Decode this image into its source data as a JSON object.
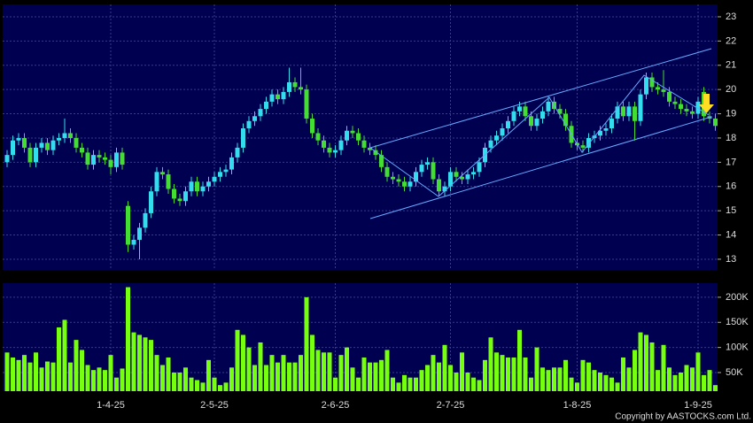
{
  "chart_data": {
    "type": "candlestick",
    "categories": [
      null,
      null,
      null,
      null,
      null,
      null,
      null,
      null,
      null,
      null,
      null,
      null,
      null,
      null,
      null,
      null,
      null,
      null,
      "1-4-25",
      null,
      null,
      null,
      null,
      null,
      null,
      null,
      null,
      null,
      null,
      null,
      null,
      null,
      null,
      null,
      null,
      null,
      "2-5-25",
      null,
      null,
      null,
      null,
      null,
      null,
      null,
      null,
      null,
      null,
      null,
      null,
      null,
      null,
      null,
      null,
      null,
      null,
      null,
      null,
      "2-6-25",
      null,
      null,
      null,
      null,
      null,
      null,
      null,
      null,
      null,
      null,
      null,
      null,
      null,
      null,
      null,
      null,
      null,
      null,
      null,
      "2-7-25",
      null,
      null,
      null,
      null,
      null,
      null,
      null,
      null,
      null,
      null,
      null,
      null,
      null,
      null,
      null,
      null,
      null,
      null,
      null,
      null,
      null,
      "1-8-25",
      null,
      null,
      null,
      null,
      null,
      null,
      null,
      null,
      null,
      null,
      null,
      null,
      null,
      null,
      null,
      null,
      null,
      null,
      null,
      null,
      "1-9-25",
      null,
      null,
      null
    ],
    "open": [
      17.0,
      17.3,
      17.9,
      18.0,
      17.6,
      17.0,
      17.6,
      17.8,
      17.5,
      17.9,
      18.0,
      18.2,
      18.0,
      17.6,
      17.4,
      16.9,
      17.3,
      17.2,
      17.1,
      16.8,
      17.4,
      15.2,
      13.6,
      13.8,
      14.3,
      14.9,
      15.8,
      16.6,
      16.5,
      15.9,
      15.5,
      15.4,
      15.8,
      16.2,
      15.8,
      16.0,
      16.2,
      16.4,
      16.6,
      16.7,
      17.2,
      17.6,
      18.4,
      18.7,
      18.9,
      19.2,
      19.5,
      19.8,
      19.6,
      19.9,
      20.3,
      20.1,
      20.0,
      18.8,
      18.2,
      17.9,
      17.6,
      17.4,
      17.5,
      17.9,
      18.3,
      18.2,
      17.9,
      17.6,
      17.5,
      17.3,
      16.8,
      16.4,
      16.3,
      16.2,
      16.0,
      16.2,
      16.6,
      16.9,
      17.0,
      16.3,
      15.8,
      16.0,
      16.6,
      16.4,
      16.3,
      16.5,
      16.6,
      17.0,
      17.6,
      17.9,
      18.1,
      18.4,
      18.7,
      19.1,
      19.3,
      18.9,
      18.5,
      18.8,
      19.1,
      19.5,
      19.2,
      19.0,
      18.5,
      17.8,
      17.7,
      17.6,
      18.0,
      18.1,
      18.3,
      18.4,
      18.8,
      19.3,
      18.9,
      19.3,
      18.7,
      19.8,
      20.5,
      20.1,
      20.0,
      19.9,
      19.5,
      19.4,
      19.2,
      19.1,
      19.0,
      19.9,
      18.9,
      18.8
    ],
    "high": [
      17.5,
      18.1,
      18.2,
      18.2,
      17.8,
      17.8,
      18.0,
      18.0,
      18.1,
      18.2,
      18.8,
      18.4,
      18.2,
      17.8,
      17.6,
      17.5,
      17.5,
      17.4,
      17.3,
      17.6,
      17.6,
      15.4,
      14.0,
      14.5,
      15.1,
      16.0,
      16.8,
      16.8,
      16.7,
      16.1,
      15.7,
      16.0,
      16.4,
      16.4,
      16.2,
      16.4,
      16.6,
      16.8,
      16.9,
      17.4,
      17.8,
      18.6,
      18.9,
      19.1,
      19.4,
      19.7,
      20.0,
      20.0,
      20.1,
      20.9,
      20.5,
      20.9,
      20.2,
      19.0,
      18.4,
      18.1,
      17.8,
      17.7,
      18.1,
      18.5,
      18.5,
      18.4,
      18.1,
      17.8,
      17.7,
      17.5,
      17.0,
      16.6,
      16.5,
      16.4,
      16.4,
      16.8,
      17.1,
      17.2,
      17.2,
      16.5,
      16.2,
      16.8,
      16.8,
      16.6,
      16.7,
      16.8,
      17.2,
      17.8,
      18.1,
      18.3,
      18.6,
      18.9,
      19.3,
      19.5,
      19.5,
      19.1,
      19.0,
      19.3,
      19.7,
      19.7,
      19.4,
      19.2,
      18.7,
      18.0,
      17.9,
      18.2,
      18.3,
      18.5,
      18.6,
      19.0,
      19.5,
      19.5,
      19.5,
      19.5,
      20.0,
      20.7,
      20.7,
      20.3,
      20.8,
      20.1,
      19.7,
      19.6,
      19.4,
      19.3,
      19.7,
      20.1,
      19.1,
      19.0
    ],
    "low": [
      16.8,
      17.1,
      17.7,
      17.4,
      16.8,
      16.8,
      17.4,
      17.3,
      17.3,
      17.7,
      17.8,
      17.8,
      17.4,
      17.2,
      16.7,
      16.7,
      17.0,
      16.9,
      16.5,
      16.6,
      16.7,
      13.3,
      13.4,
      13.0,
      14.1,
      14.7,
      15.6,
      16.3,
      15.7,
      15.3,
      15.2,
      15.2,
      15.6,
      15.6,
      15.6,
      15.8,
      16.0,
      16.2,
      16.4,
      16.5,
      17.0,
      17.4,
      18.2,
      18.5,
      18.7,
      19.0,
      19.3,
      19.4,
      19.4,
      19.7,
      19.9,
      19.8,
      18.6,
      18.0,
      17.7,
      17.4,
      17.2,
      17.2,
      17.3,
      17.7,
      18.0,
      17.7,
      17.4,
      17.3,
      17.1,
      16.6,
      16.2,
      16.1,
      16.0,
      15.8,
      15.8,
      16.0,
      16.4,
      16.7,
      16.1,
      15.6,
      15.6,
      15.8,
      16.2,
      16.1,
      16.1,
      16.3,
      16.4,
      16.8,
      17.4,
      17.7,
      17.9,
      18.2,
      18.5,
      18.9,
      18.7,
      18.3,
      18.3,
      18.6,
      18.9,
      19.0,
      18.8,
      18.3,
      17.6,
      17.5,
      17.4,
      17.4,
      17.8,
      17.9,
      18.1,
      18.2,
      18.6,
      18.7,
      18.7,
      17.9,
      18.5,
      19.6,
      19.9,
      19.8,
      19.7,
      19.3,
      19.2,
      19.0,
      18.9,
      18.8,
      18.8,
      18.7,
      18.6,
      18.3
    ],
    "close": [
      17.3,
      17.9,
      18.0,
      17.6,
      17.0,
      17.6,
      17.8,
      17.5,
      17.9,
      18.0,
      18.2,
      18.0,
      17.6,
      17.4,
      16.9,
      17.3,
      17.2,
      17.1,
      16.8,
      17.4,
      16.9,
      13.6,
      13.8,
      14.3,
      14.9,
      15.8,
      16.6,
      16.5,
      15.9,
      15.5,
      15.4,
      15.8,
      16.2,
      15.8,
      16.0,
      16.2,
      16.4,
      16.6,
      16.7,
      17.2,
      17.6,
      18.4,
      18.7,
      18.9,
      19.2,
      19.5,
      19.8,
      19.6,
      19.9,
      20.3,
      20.1,
      20.0,
      18.8,
      18.2,
      17.9,
      17.6,
      17.4,
      17.5,
      17.9,
      18.3,
      18.2,
      17.9,
      17.6,
      17.5,
      17.3,
      16.8,
      16.4,
      16.3,
      16.2,
      16.0,
      16.2,
      16.6,
      16.9,
      17.0,
      16.3,
      15.8,
      16.0,
      16.6,
      16.4,
      16.3,
      16.5,
      16.6,
      17.0,
      17.6,
      17.9,
      18.1,
      18.4,
      18.7,
      19.1,
      19.3,
      18.9,
      18.5,
      18.8,
      19.1,
      19.5,
      19.2,
      19.0,
      18.5,
      17.8,
      17.7,
      17.6,
      18.0,
      18.1,
      18.3,
      18.4,
      18.8,
      19.3,
      18.9,
      19.3,
      18.7,
      19.8,
      20.5,
      20.1,
      20.0,
      19.9,
      19.5,
      19.4,
      19.2,
      19.1,
      19.0,
      19.5,
      18.9,
      18.8,
      18.5
    ],
    "up_color": "#33dded",
    "down_color": "#44dd33",
    "ylim": [
      12.56,
      23.51
    ],
    "yticks": [
      13,
      14,
      15,
      16,
      17,
      18,
      19,
      20,
      21,
      22,
      23
    ],
    "grid": true,
    "volume": {
      "values": [
        90000,
        80000,
        75000,
        85000,
        70000,
        90000,
        60000,
        72000,
        70000,
        140000,
        155000,
        70000,
        115000,
        95000,
        65000,
        55000,
        60000,
        55000,
        85000,
        40000,
        58000,
        220000,
        130000,
        125000,
        120000,
        115000,
        85000,
        65000,
        80000,
        50000,
        50000,
        60000,
        40000,
        35000,
        30000,
        75000,
        40000,
        25000,
        30000,
        60000,
        135000,
        125000,
        100000,
        65000,
        110000,
        65000,
        85000,
        70000,
        85000,
        70000,
        70000,
        85000,
        200000,
        125000,
        95000,
        90000,
        90000,
        40000,
        85000,
        100000,
        60000,
        40000,
        80000,
        70000,
        70000,
        75000,
        95000,
        40000,
        30000,
        45000,
        40000,
        40000,
        55000,
        65000,
        85000,
        70000,
        105000,
        65000,
        50000,
        90000,
        50000,
        40000,
        35000,
        75000,
        120000,
        90000,
        85000,
        80000,
        80000,
        135000,
        80000,
        40000,
        100000,
        60000,
        55000,
        60000,
        60000,
        75000,
        40000,
        30000,
        75000,
        70000,
        55000,
        50000,
        45000,
        40000,
        30000,
        80000,
        60000,
        95000,
        130000,
        125000,
        110000,
        55000,
        105000,
        60000,
        45000,
        50000,
        65000,
        60000,
        90000,
        45000,
        55000,
        25000
      ],
      "color": "#77ff11",
      "ylim": [
        13000,
        228000
      ],
      "yticks": [
        {
          "value": 50000,
          "label": "50K"
        },
        {
          "value": 100000,
          "label": "100K"
        },
        {
          "value": 150000,
          "label": "150K"
        },
        {
          "value": 200000,
          "label": "200K"
        }
      ]
    },
    "copyright": "Copyright by AASTOCKS.com Ltd."
  }
}
